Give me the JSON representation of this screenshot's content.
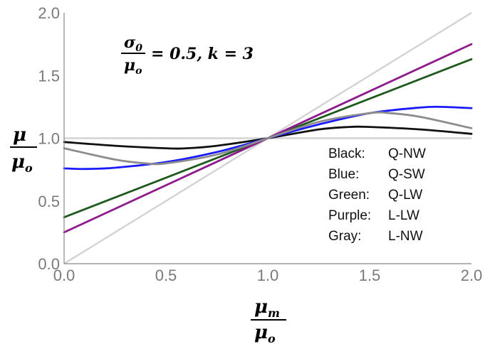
{
  "chart_data": {
    "type": "line",
    "annotation": {
      "frac_num": "σ",
      "frac_num_sub": "0",
      "frac_den": "μ",
      "frac_den_sub": "o",
      "rest": "= 0.5, k = 3"
    },
    "ylabel": {
      "num": "μ",
      "den": "μ",
      "den_sub": "o"
    },
    "xlabel": {
      "num": "μ",
      "num_sub": "m",
      "den": "μ",
      "den_sub": "o"
    },
    "xlim": [
      0,
      2
    ],
    "ylim": [
      0,
      2
    ],
    "x_ticks": [
      "0.0",
      "0.5",
      "1.0",
      "1.5",
      "2.0"
    ],
    "y_ticks": [
      "0.0",
      "0.5",
      "1.0",
      "1.5",
      "2.0"
    ],
    "reference_lines": [
      {
        "color": "#d4d4d4",
        "x": [
          0,
          2
        ],
        "y": [
          0,
          2
        ]
      },
      {
        "color": "#d4d4d4",
        "x": [
          0,
          2
        ],
        "y": [
          1,
          1
        ]
      }
    ],
    "series": [
      {
        "name": "Q-NW",
        "color": "#111111",
        "x": [
          0,
          0.25,
          0.5,
          0.6,
          0.75,
          1.0,
          1.25,
          1.4,
          1.5,
          1.75,
          2.0
        ],
        "y": [
          0.97,
          0.94,
          0.92,
          0.92,
          0.94,
          1.0,
          1.07,
          1.09,
          1.09,
          1.07,
          1.035
        ]
      },
      {
        "name": "Q-SW",
        "color": "#1a1aff",
        "x": [
          0,
          0.1,
          0.25,
          0.5,
          0.75,
          1.0,
          1.25,
          1.5,
          1.75,
          1.85,
          2.0
        ],
        "y": [
          0.76,
          0.755,
          0.765,
          0.81,
          0.89,
          1.0,
          1.11,
          1.2,
          1.245,
          1.25,
          1.24
        ]
      },
      {
        "name": "Q-LW",
        "color": "#1e5a1e",
        "x": [
          0,
          2
        ],
        "y": [
          0.37,
          1.63
        ]
      },
      {
        "name": "L-LW",
        "color": "#8e1a8e",
        "x": [
          0,
          2
        ],
        "y": [
          0.25,
          1.75
        ]
      },
      {
        "name": "L-NW",
        "color": "#8c8c8c",
        "x": [
          0,
          0.25,
          0.4,
          0.5,
          0.75,
          1.0,
          1.25,
          1.5,
          1.6,
          1.75,
          2.0
        ],
        "y": [
          0.92,
          0.83,
          0.8,
          0.8,
          0.87,
          1.0,
          1.13,
          1.2,
          1.2,
          1.17,
          1.08
        ]
      }
    ],
    "legend": {
      "position": "center-right",
      "entries": [
        {
          "label": "Black:",
          "value": "Q-NW"
        },
        {
          "label": "Blue:",
          "value": "Q-SW"
        },
        {
          "label": "Green:",
          "value": "Q-LW"
        },
        {
          "label": "Purple:",
          "value": "L-LW"
        },
        {
          "label": "Gray:",
          "value": "L-NW"
        }
      ]
    }
  }
}
